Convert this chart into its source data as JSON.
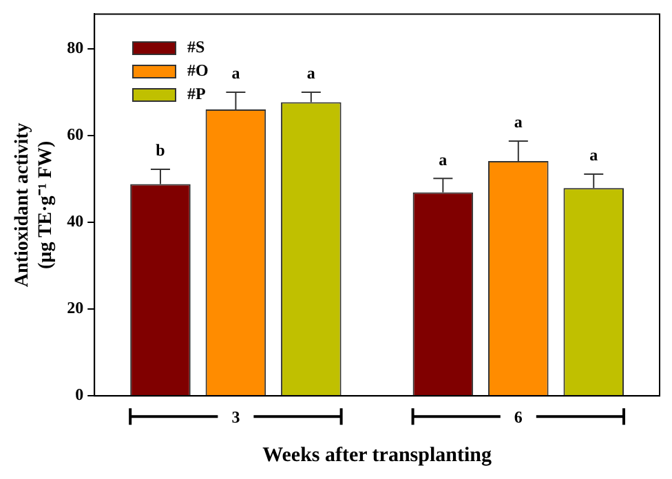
{
  "chart_data": {
    "type": "bar",
    "xlabel": "Weeks after transplanting",
    "ylabel": "Antioxidant activity (µg TE·g⁻¹ FW)",
    "categories": [
      "3",
      "6"
    ],
    "series": [
      {
        "name": "#S",
        "color": "#800000",
        "values": [
          48.8,
          46.9
        ],
        "errors": [
          [
            48.8,
            52.2
          ],
          [
            46.9,
            50.1
          ]
        ]
      },
      {
        "name": "#O",
        "color": "#ff8c00",
        "values": [
          66.0,
          54.1
        ],
        "errors": [
          [
            66.0,
            70.0
          ],
          [
            54.1,
            58.7
          ]
        ]
      },
      {
        "name": "#P",
        "color": "#c0c000",
        "values": [
          67.7,
          47.9
        ],
        "errors": [
          [
            67.7,
            70.0
          ],
          [
            47.9,
            51.1
          ]
        ]
      }
    ],
    "ylim": [
      0,
      88
    ],
    "yticks": [
      0,
      20,
      40,
      60,
      80
    ],
    "grid": false,
    "legend": "top left",
    "annotations": [
      "b",
      "a",
      "a",
      "a",
      "a",
      "a"
    ]
  }
}
